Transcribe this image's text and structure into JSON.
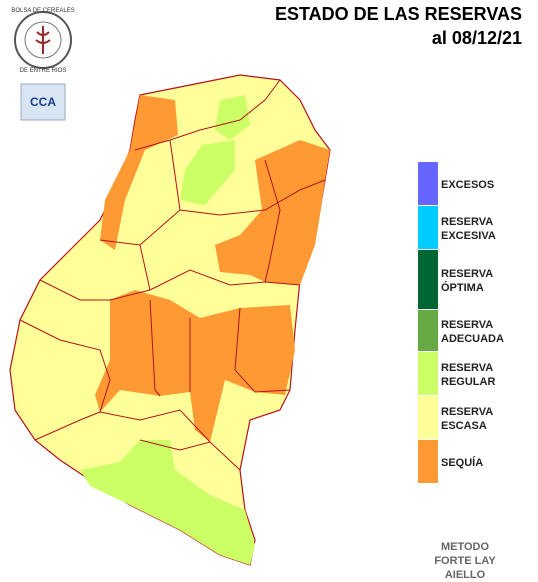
{
  "header": {
    "title": "ESTADO DE LAS RESERVAS",
    "date": "al 08/12/21"
  },
  "logo": {
    "org": "BOLSA DE CEREALES",
    "place": "DE ENTRE RIOS",
    "badge": "CCA"
  },
  "legend": {
    "items": [
      {
        "label": [
          "EXCESOS"
        ],
        "color": "#6666ff"
      },
      {
        "label": [
          "RESERVA",
          "EXCESIVA"
        ],
        "color": "#00ccff"
      },
      {
        "label": [
          "RESERVA",
          "ÓPTIMA"
        ],
        "color": "#006633"
      },
      {
        "label": [
          "RESERVA",
          "ADECUADA"
        ],
        "color": "#66aa44"
      },
      {
        "label": [
          "RESERVA",
          "REGULAR"
        ],
        "color": "#ccff66"
      },
      {
        "label": [
          "RESERVA",
          "ESCASA"
        ],
        "color": "#ffff99"
      },
      {
        "label": [
          "SEQUÍA"
        ],
        "color": "#ff9933"
      }
    ]
  },
  "footer": {
    "lines": [
      "METODO",
      "FORTE LAY",
      "AIELLO"
    ]
  }
}
